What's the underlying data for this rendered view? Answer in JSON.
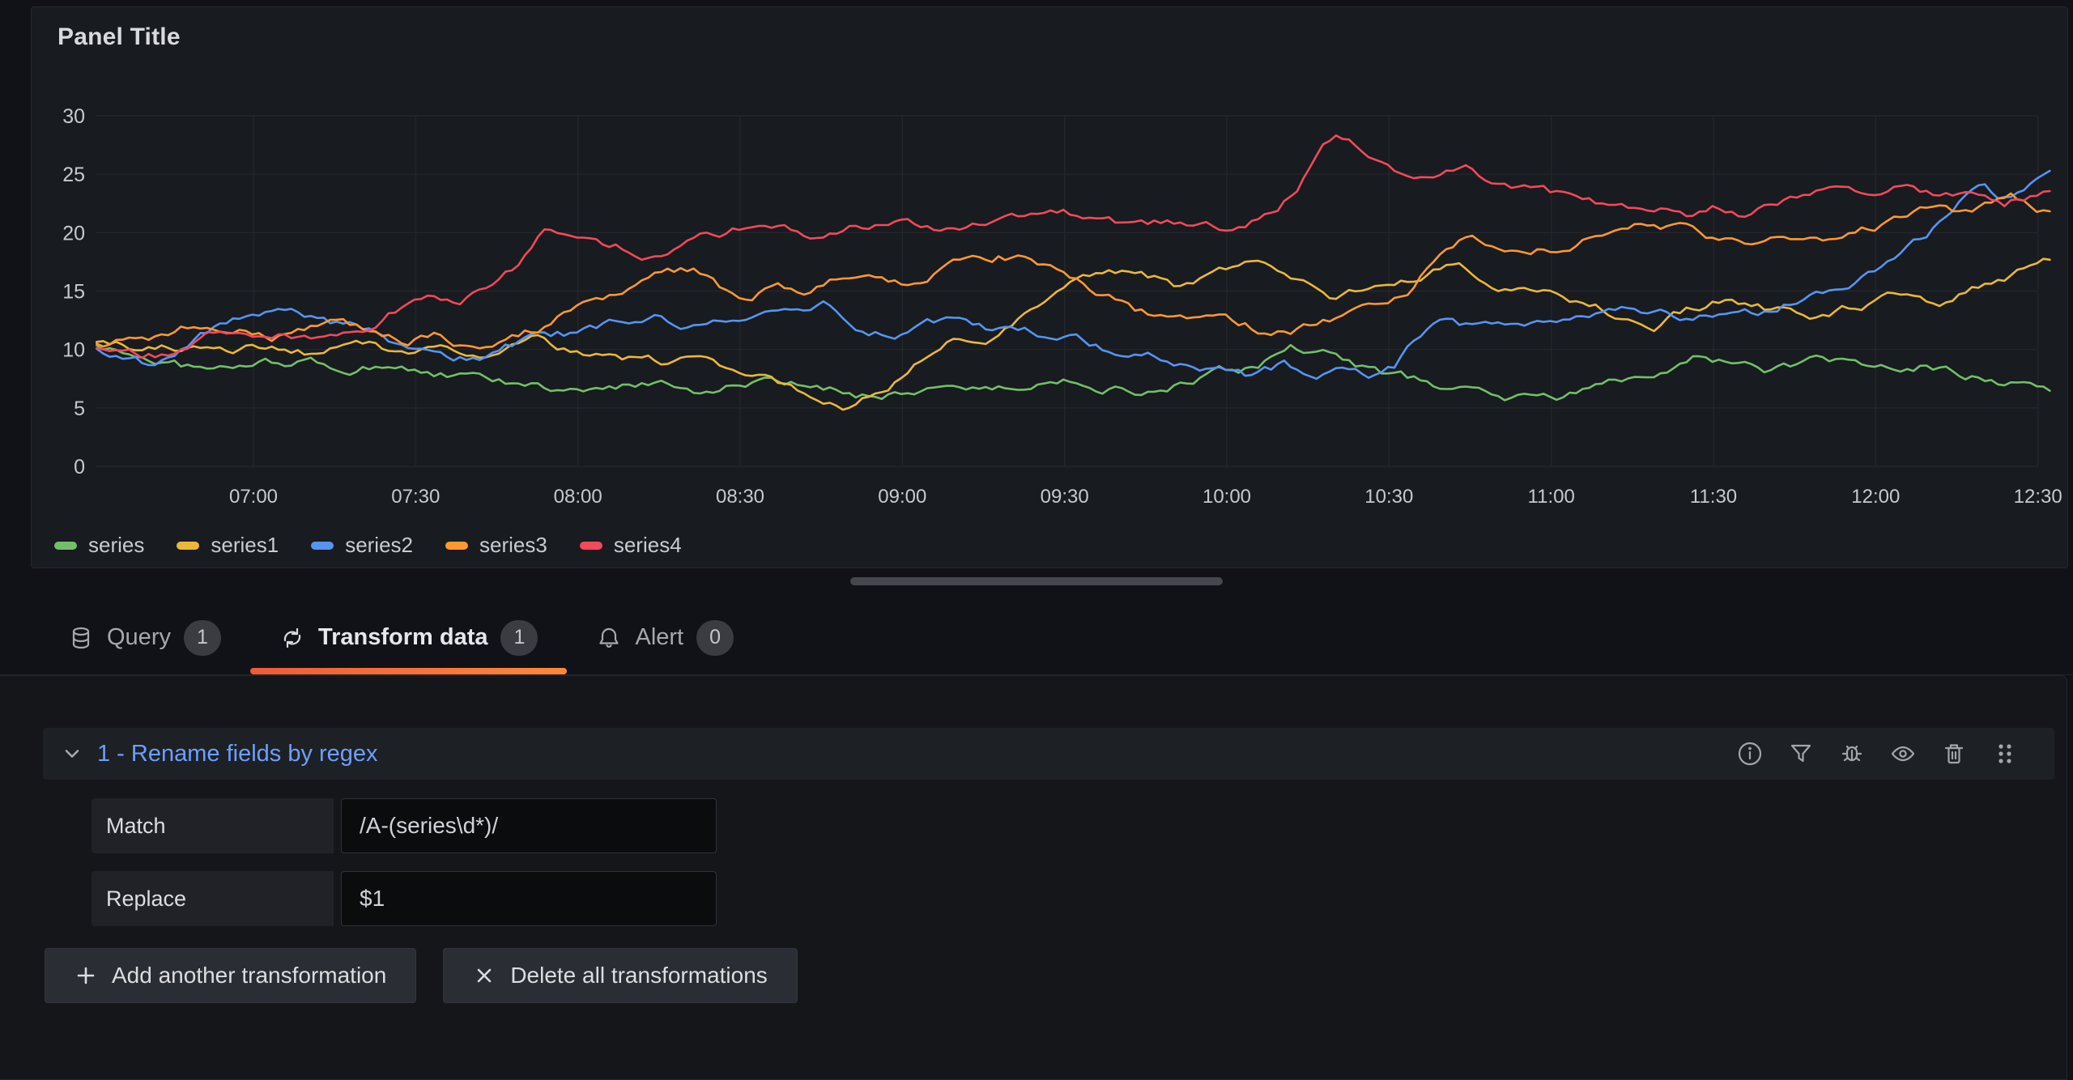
{
  "panel": {
    "title": "Panel Title"
  },
  "chart_data": {
    "type": "line",
    "title": "Panel Title",
    "x_ticks": [
      "07:00",
      "07:30",
      "08:00",
      "08:30",
      "09:00",
      "09:30",
      "10:00",
      "10:30",
      "11:00",
      "11:30",
      "12:00",
      "12:30"
    ],
    "x_range": [
      "06:31",
      "12:33"
    ],
    "y_ticks": [
      0,
      5,
      10,
      15,
      20,
      25,
      30
    ],
    "y_min": 0,
    "y_max": 30,
    "grid": true,
    "legend_position": "bottom",
    "series": [
      {
        "name": "series",
        "color": "#73BF69",
        "anchors": [
          [
            31,
            10.3
          ],
          [
            36,
            9.7
          ],
          [
            42,
            9.2
          ],
          [
            52,
            8.0
          ],
          [
            60,
            8.6
          ],
          [
            68,
            9.0
          ],
          [
            78,
            8.2
          ],
          [
            86,
            8.8
          ],
          [
            96,
            7.8
          ],
          [
            106,
            7.0
          ],
          [
            116,
            6.4
          ],
          [
            126,
            6.2
          ],
          [
            134,
            7.2
          ],
          [
            142,
            6.7
          ],
          [
            152,
            7.3
          ],
          [
            162,
            6.6
          ],
          [
            172,
            6.2
          ],
          [
            180,
            6.6
          ],
          [
            190,
            7.2
          ],
          [
            200,
            6.6
          ],
          [
            210,
            7.6
          ],
          [
            220,
            7.0
          ],
          [
            228,
            6.4
          ],
          [
            236,
            7.4
          ],
          [
            244,
            8.1
          ],
          [
            252,
            9.9
          ],
          [
            258,
            9.3
          ],
          [
            266,
            8.2
          ],
          [
            276,
            7.0
          ],
          [
            286,
            6.3
          ],
          [
            296,
            5.9
          ],
          [
            302,
            5.7
          ],
          [
            310,
            6.9
          ],
          [
            318,
            8.1
          ],
          [
            326,
            9.8
          ],
          [
            332,
            9.0
          ],
          [
            340,
            8.3
          ],
          [
            348,
            8.8
          ],
          [
            356,
            8.4
          ],
          [
            364,
            8.0
          ],
          [
            370,
            8.6
          ],
          [
            376,
            7.8
          ],
          [
            382,
            7.5
          ],
          [
            388,
            7.1
          ],
          [
            393,
            6.4
          ]
        ]
      },
      {
        "name": "series1",
        "color": "#EAB839",
        "anchors": [
          [
            31,
            10.4
          ],
          [
            40,
            9.7
          ],
          [
            48,
            10.3
          ],
          [
            56,
            9.2
          ],
          [
            64,
            10.0
          ],
          [
            72,
            9.3
          ],
          [
            80,
            10.2
          ],
          [
            88,
            9.4
          ],
          [
            96,
            10.5
          ],
          [
            104,
            9.7
          ],
          [
            112,
            10.4
          ],
          [
            120,
            9.5
          ],
          [
            128,
            8.9
          ],
          [
            136,
            8.5
          ],
          [
            144,
            8.8
          ],
          [
            150,
            8.2
          ],
          [
            156,
            7.4
          ],
          [
            164,
            6.4
          ],
          [
            170,
            5.7
          ],
          [
            178,
            7.0
          ],
          [
            184,
            9.2
          ],
          [
            190,
            11.2
          ],
          [
            196,
            11.6
          ],
          [
            202,
            12.8
          ],
          [
            208,
            14.2
          ],
          [
            214,
            15.9
          ],
          [
            220,
            16.6
          ],
          [
            226,
            15.9
          ],
          [
            231,
            15.1
          ],
          [
            237,
            16.0
          ],
          [
            243,
            16.9
          ],
          [
            249,
            16.4
          ],
          [
            255,
            15.2
          ],
          [
            259,
            14.4
          ],
          [
            265,
            14.9
          ],
          [
            271,
            15.1
          ],
          [
            277,
            16.4
          ],
          [
            283,
            17.3
          ],
          [
            289,
            16.1
          ],
          [
            295,
            15.0
          ],
          [
            301,
            14.6
          ],
          [
            307,
            13.7
          ],
          [
            313,
            12.9
          ],
          [
            319,
            12.5
          ],
          [
            325,
            13.7
          ],
          [
            331,
            14.5
          ],
          [
            337,
            13.8
          ],
          [
            343,
            13.1
          ],
          [
            349,
            12.6
          ],
          [
            355,
            13.4
          ],
          [
            361,
            14.4
          ],
          [
            367,
            15.2
          ],
          [
            371,
            14.4
          ],
          [
            375,
            14.8
          ],
          [
            379,
            15.5
          ],
          [
            383,
            16.4
          ],
          [
            388,
            17.0
          ],
          [
            393,
            17.4
          ]
        ]
      },
      {
        "name": "series2",
        "color": "#5794F2",
        "anchors": [
          [
            31,
            10.0
          ],
          [
            36,
            9.4
          ],
          [
            40,
            8.9
          ],
          [
            48,
            10.5
          ],
          [
            56,
            12.4
          ],
          [
            64,
            12.9
          ],
          [
            72,
            12.5
          ],
          [
            80,
            11.6
          ],
          [
            88,
            10.4
          ],
          [
            96,
            9.7
          ],
          [
            102,
            9.5
          ],
          [
            110,
            10.9
          ],
          [
            118,
            11.2
          ],
          [
            126,
            12.1
          ],
          [
            134,
            12.7
          ],
          [
            142,
            11.9
          ],
          [
            150,
            12.2
          ],
          [
            158,
            13.0
          ],
          [
            166,
            13.5
          ],
          [
            172,
            12.3
          ],
          [
            178,
            11.5
          ],
          [
            184,
            13.1
          ],
          [
            190,
            12.4
          ],
          [
            196,
            11.3
          ],
          [
            202,
            11.7
          ],
          [
            208,
            10.9
          ],
          [
            214,
            10.4
          ],
          [
            220,
            9.3
          ],
          [
            226,
            9.6
          ],
          [
            232,
            8.6
          ],
          [
            238,
            8.0
          ],
          [
            244,
            7.5
          ],
          [
            250,
            8.4
          ],
          [
            256,
            7.8
          ],
          [
            262,
            8.9
          ],
          [
            266,
            8.3
          ],
          [
            271,
            8.8
          ],
          [
            275,
            11.2
          ],
          [
            279,
            12.2
          ],
          [
            284,
            11.8
          ],
          [
            290,
            12.4
          ],
          [
            296,
            11.9
          ],
          [
            302,
            12.6
          ],
          [
            308,
            13.3
          ],
          [
            314,
            13.9
          ],
          [
            320,
            13.4
          ],
          [
            326,
            13.0
          ],
          [
            332,
            13.6
          ],
          [
            338,
            13.2
          ],
          [
            344,
            14.2
          ],
          [
            350,
            15.0
          ],
          [
            356,
            16.3
          ],
          [
            362,
            17.9
          ],
          [
            368,
            19.6
          ],
          [
            373,
            21.5
          ],
          [
            377,
            23.3
          ],
          [
            380,
            24.2
          ],
          [
            383,
            22.6
          ],
          [
            386,
            23.3
          ],
          [
            390,
            24.5
          ],
          [
            393,
            25.3
          ]
        ]
      },
      {
        "name": "series3",
        "color": "#FF9830",
        "anchors": [
          [
            31,
            10.2
          ],
          [
            40,
            11.0
          ],
          [
            46,
            11.5
          ],
          [
            52,
            12.5
          ],
          [
            58,
            11.8
          ],
          [
            64,
            11.4
          ],
          [
            70,
            12.1
          ],
          [
            76,
            12.7
          ],
          [
            82,
            11.6
          ],
          [
            88,
            11.0
          ],
          [
            94,
            11.8
          ],
          [
            100,
            10.1
          ],
          [
            106,
            10.8
          ],
          [
            112,
            11.7
          ],
          [
            118,
            13.4
          ],
          [
            124,
            14.6
          ],
          [
            130,
            15.4
          ],
          [
            136,
            16.2
          ],
          [
            142,
            16.5
          ],
          [
            146,
            15.1
          ],
          [
            150,
            14.3
          ],
          [
            156,
            15.4
          ],
          [
            162,
            14.7
          ],
          [
            168,
            15.9
          ],
          [
            174,
            16.6
          ],
          [
            180,
            16.1
          ],
          [
            186,
            17.0
          ],
          [
            192,
            17.6
          ],
          [
            198,
            18.1
          ],
          [
            203,
            17.5
          ],
          [
            209,
            16.3
          ],
          [
            215,
            14.9
          ],
          [
            221,
            13.6
          ],
          [
            227,
            12.5
          ],
          [
            233,
            11.8
          ],
          [
            239,
            12.0
          ],
          [
            245,
            11.5
          ],
          [
            251,
            11.3
          ],
          [
            257,
            11.9
          ],
          [
            263,
            12.8
          ],
          [
            269,
            13.6
          ],
          [
            273,
            14.3
          ],
          [
            277,
            16.5
          ],
          [
            281,
            18.2
          ],
          [
            285,
            19.4
          ],
          [
            289,
            18.6
          ],
          [
            293,
            18.0
          ],
          [
            297,
            18.4
          ],
          [
            301,
            18.2
          ],
          [
            305,
            19.0
          ],
          [
            309,
            19.8
          ],
          [
            313,
            20.6
          ],
          [
            317,
            21.1
          ],
          [
            321,
            20.6
          ],
          [
            325,
            21.2
          ],
          [
            329,
            20.3
          ],
          [
            333,
            19.6
          ],
          [
            337,
            19.0
          ],
          [
            341,
            19.5
          ],
          [
            345,
            18.9
          ],
          [
            349,
            19.4
          ],
          [
            353,
            18.8
          ],
          [
            357,
            19.6
          ],
          [
            361,
            20.4
          ],
          [
            365,
            21.2
          ],
          [
            369,
            21.9
          ],
          [
            373,
            22.4
          ],
          [
            377,
            21.8
          ],
          [
            381,
            22.3
          ],
          [
            385,
            22.7
          ],
          [
            389,
            22.0
          ],
          [
            393,
            21.7
          ]
        ]
      },
      {
        "name": "series4",
        "color": "#F2495C",
        "anchors": [
          [
            31,
            10.1
          ],
          [
            36,
            9.8
          ],
          [
            42,
            9.6
          ],
          [
            48,
            10.6
          ],
          [
            52,
            11.3
          ],
          [
            62,
            11.6
          ],
          [
            72,
            11.0
          ],
          [
            80,
            12.0
          ],
          [
            85,
            13.2
          ],
          [
            90,
            14.6
          ],
          [
            94,
            14.9
          ],
          [
            98,
            14.2
          ],
          [
            103,
            15.8
          ],
          [
            108,
            17.4
          ],
          [
            112,
            19.6
          ],
          [
            114,
            20.8
          ],
          [
            118,
            20.2
          ],
          [
            126,
            18.9
          ],
          [
            132,
            18.5
          ],
          [
            138,
            19.3
          ],
          [
            145,
            19.6
          ],
          [
            150,
            20.3
          ],
          [
            158,
            19.8
          ],
          [
            165,
            19.2
          ],
          [
            172,
            20.1
          ],
          [
            180,
            21.2
          ],
          [
            190,
            20.2
          ],
          [
            200,
            20.8
          ],
          [
            210,
            21.1
          ],
          [
            220,
            20.3
          ],
          [
            230,
            20.9
          ],
          [
            238,
            20.3
          ],
          [
            245,
            21.4
          ],
          [
            250,
            22.8
          ],
          [
            253,
            24.2
          ],
          [
            256,
            26.4
          ],
          [
            258,
            28.0
          ],
          [
            261,
            28.4
          ],
          [
            265,
            27.2
          ],
          [
            270,
            25.3
          ],
          [
            275,
            24.6
          ],
          [
            280,
            25.1
          ],
          [
            285,
            25.6
          ],
          [
            288,
            24.9
          ],
          [
            295,
            24.0
          ],
          [
            300,
            23.4
          ],
          [
            305,
            22.6
          ],
          [
            312,
            22.3
          ],
          [
            318,
            22.0
          ],
          [
            325,
            21.6
          ],
          [
            330,
            22.4
          ],
          [
            335,
            21.9
          ],
          [
            342,
            22.7
          ],
          [
            350,
            24.1
          ],
          [
            355,
            24.6
          ],
          [
            360,
            23.7
          ],
          [
            365,
            24.2
          ],
          [
            370,
            23.2
          ],
          [
            375,
            22.8
          ],
          [
            380,
            23.5
          ],
          [
            384,
            22.9
          ],
          [
            389,
            23.4
          ],
          [
            393,
            23.6
          ]
        ]
      }
    ]
  },
  "tabs": [
    {
      "label": "Query",
      "badge": "1",
      "icon": "database-icon",
      "active": false
    },
    {
      "label": "Transform data",
      "badge": "1",
      "icon": "transform-icon",
      "active": true
    },
    {
      "label": "Alert",
      "badge": "0",
      "icon": "bell-icon",
      "active": false
    }
  ],
  "transformation": {
    "title": "1 - Rename fields by regex",
    "fields": [
      {
        "label": "Match",
        "value": "/A-(series\\d*)/"
      },
      {
        "label": "Replace",
        "value": "$1"
      }
    ],
    "action_icons": [
      "info-icon",
      "filter-icon",
      "bug-icon",
      "eye-icon",
      "trash-icon",
      "drag-handle-icon"
    ]
  },
  "buttons": {
    "add_label": "Add another transformation",
    "delete_label": "Delete all transformations"
  },
  "colors": {
    "page_bg": "#111217",
    "panel_bg": "#181B1F",
    "link_blue": "#6E9FFF",
    "tab_underline_start": "#EE5B3A",
    "tab_underline_end": "#FF8838",
    "grid": "#24262C",
    "axis_text": "#C7C9CF"
  }
}
